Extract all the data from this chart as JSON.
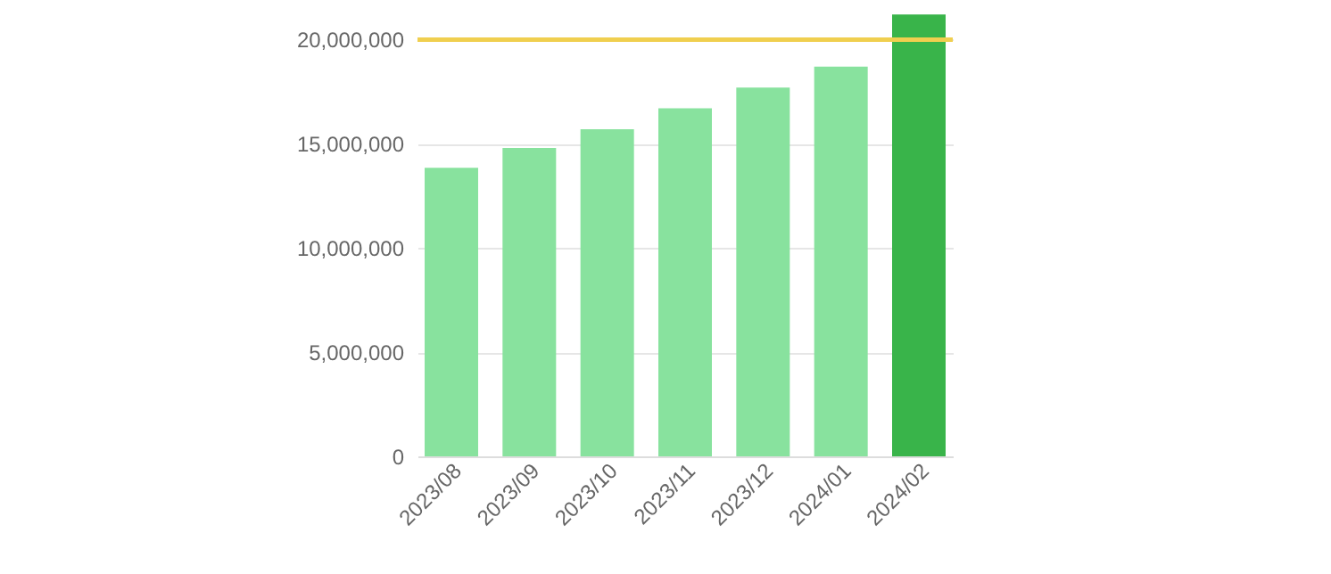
{
  "chart_data": {
    "type": "bar",
    "categories": [
      "2023/08",
      "2023/09",
      "2023/10",
      "2023/11",
      "2023/12",
      "2024/01",
      "2024/02"
    ],
    "values": [
      13850000,
      14800000,
      15700000,
      16700000,
      17700000,
      18700000,
      21200000
    ],
    "colors": [
      "#88e29e",
      "#88e29e",
      "#88e29e",
      "#88e29e",
      "#88e29e",
      "#88e29e",
      "#39b44a"
    ],
    "ylim": [
      0,
      21300000
    ],
    "yticks": [
      0,
      {
        "value": 5000000,
        "label": "5,000,000"
      },
      {
        "value": 10000000,
        "label": "10,000,000"
      },
      {
        "value": 15000000,
        "label": "15,000,000"
      },
      {
        "value": 20000000,
        "label": "20,000,000"
      }
    ],
    "grid": "y",
    "ref_lines": [
      {
        "axis": "y",
        "value": 20000000,
        "color": "#f0cf4f"
      }
    ]
  }
}
